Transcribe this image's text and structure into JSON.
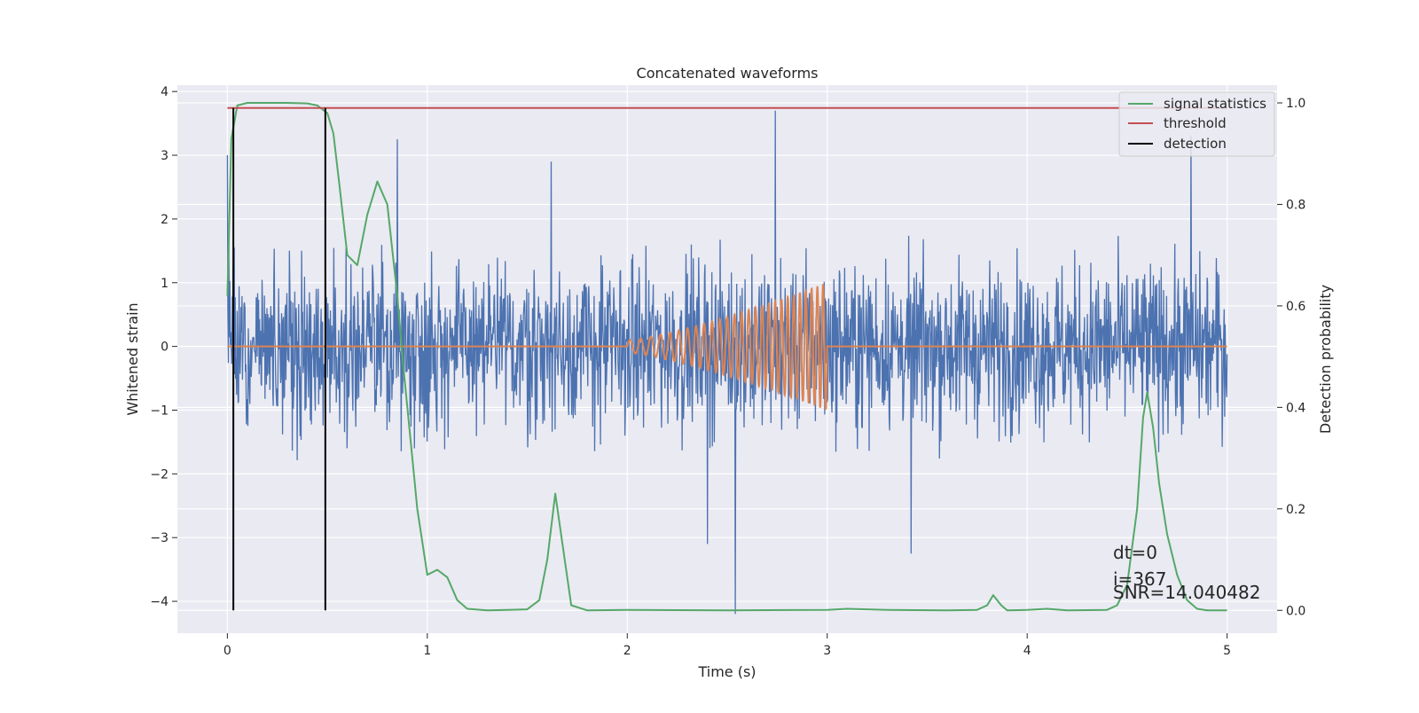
{
  "chart_data": {
    "type": "line",
    "title": "Concatenated waveforms",
    "xlabel": "Time (s)",
    "ylabel": "Whitened strain",
    "y2label": "Detection probability",
    "xlim": [
      -0.25,
      5.25
    ],
    "ylim": [
      -4.5,
      4.1
    ],
    "y2lim": [
      -0.045,
      1.035
    ],
    "xticks": [
      0,
      1,
      2,
      3,
      4,
      5
    ],
    "yticks": [
      -4,
      -3,
      -2,
      -1,
      0,
      1,
      2,
      3,
      4
    ],
    "y2ticks": [
      0.0,
      0.2,
      0.4,
      0.6,
      0.8,
      1.0
    ],
    "grid": true,
    "legend_position": "top-right",
    "colors": {
      "background": "#eaeaf2",
      "strain": "#4c72b0",
      "template": "#dd8452",
      "signal_statistics": "#55a868",
      "threshold": "#c44e52",
      "detection": "#000000"
    },
    "strain": {
      "description_free": true,
      "t_start": 0,
      "t_end": 5,
      "samples": 2048,
      "amplitude_envelope": [
        -2.7,
        3.2
      ],
      "spikes": [
        {
          "t": 0.0,
          "v": 3.0
        },
        {
          "t": 0.85,
          "v": 3.25
        },
        {
          "t": 1.62,
          "v": 2.9
        },
        {
          "t": 2.4,
          "v": -3.1
        },
        {
          "t": 2.54,
          "v": -4.2
        },
        {
          "t": 2.74,
          "v": 3.7
        },
        {
          "t": 3.42,
          "v": -3.25
        },
        {
          "t": 4.82,
          "v": 3.3
        }
      ]
    },
    "template": {
      "t_start": 2.0,
      "t_end": 3.0,
      "start_amplitude": 0.1,
      "end_amplitude": 1.0
    },
    "series": [
      {
        "name": "signal statistics",
        "axis": "right",
        "x": [
          0.0,
          0.02,
          0.05,
          0.1,
          0.2,
          0.3,
          0.4,
          0.45,
          0.5,
          0.53,
          0.56,
          0.6,
          0.65,
          0.7,
          0.75,
          0.8,
          0.85,
          0.88,
          0.92,
          0.95,
          1.0,
          1.05,
          1.1,
          1.15,
          1.2,
          1.3,
          1.4,
          1.5,
          1.56,
          1.6,
          1.64,
          1.68,
          1.72,
          1.8,
          2.0,
          2.5,
          3.0,
          3.1,
          3.3,
          3.6,
          3.75,
          3.8,
          3.83,
          3.87,
          3.9,
          4.0,
          4.1,
          4.2,
          4.4,
          4.45,
          4.5,
          4.55,
          4.58,
          4.6,
          4.63,
          4.66,
          4.7,
          4.75,
          4.8,
          4.85,
          4.9,
          5.0
        ],
        "y": [
          0.62,
          0.93,
          0.995,
          1.0,
          1.0,
          1.0,
          0.999,
          0.995,
          0.98,
          0.94,
          0.84,
          0.7,
          0.68,
          0.78,
          0.845,
          0.8,
          0.62,
          0.48,
          0.32,
          0.2,
          0.07,
          0.08,
          0.065,
          0.02,
          0.003,
          0.0,
          0.001,
          0.002,
          0.02,
          0.1,
          0.23,
          0.12,
          0.01,
          0.0,
          0.001,
          0.0,
          0.001,
          0.003,
          0.001,
          0.0,
          0.001,
          0.01,
          0.03,
          0.01,
          0.0,
          0.001,
          0.003,
          0.0,
          0.001,
          0.01,
          0.05,
          0.2,
          0.38,
          0.43,
          0.36,
          0.25,
          0.15,
          0.07,
          0.02,
          0.003,
          0.0,
          0.0
        ]
      },
      {
        "name": "threshold",
        "axis": "right",
        "x": [
          0,
          5
        ],
        "y": [
          0.99,
          0.99
        ]
      },
      {
        "name": "detection",
        "axis": "right",
        "x": [
          0.03,
          0.49
        ],
        "y_range": [
          0.0,
          0.99
        ]
      }
    ],
    "annotations": [
      "dt=0",
      "i=367",
      "SNR=14.040482"
    ]
  }
}
